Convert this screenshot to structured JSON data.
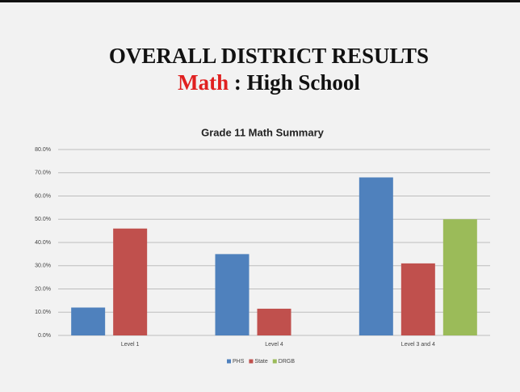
{
  "slide_title": "OVERALL DISTRICT RESULTS",
  "slide_subtitle": {
    "highlight": "Math",
    "rest": ": High School"
  },
  "chart_data": {
    "type": "bar",
    "title": "Grade 11 Math Summary",
    "categories": [
      "Level 1",
      "Level 4",
      "Level 3 and 4"
    ],
    "series": [
      {
        "name": "PHS",
        "color": "#4f81bd",
        "values": [
          12,
          35,
          68
        ]
      },
      {
        "name": "State",
        "color": "#c0504d",
        "values": [
          46,
          11.5,
          31
        ]
      },
      {
        "name": "DRGB",
        "color": "#9bbb59",
        "values": [
          null,
          null,
          50
        ]
      }
    ],
    "ylim": [
      0,
      80
    ],
    "yticks": [
      {
        "value": 0,
        "label": "0.0%"
      },
      {
        "value": 10,
        "label": "10.0%"
      },
      {
        "value": 20,
        "label": "20.0%"
      },
      {
        "value": 30,
        "label": "30.0%"
      },
      {
        "value": 40,
        "label": "40.0%"
      },
      {
        "value": 50,
        "label": "50.0%"
      },
      {
        "value": 60,
        "label": "60.0%"
      },
      {
        "value": 70,
        "label": "70.0%"
      },
      {
        "value": 80,
        "label": "80.0%"
      }
    ],
    "grid": true,
    "legend": "bottom"
  }
}
